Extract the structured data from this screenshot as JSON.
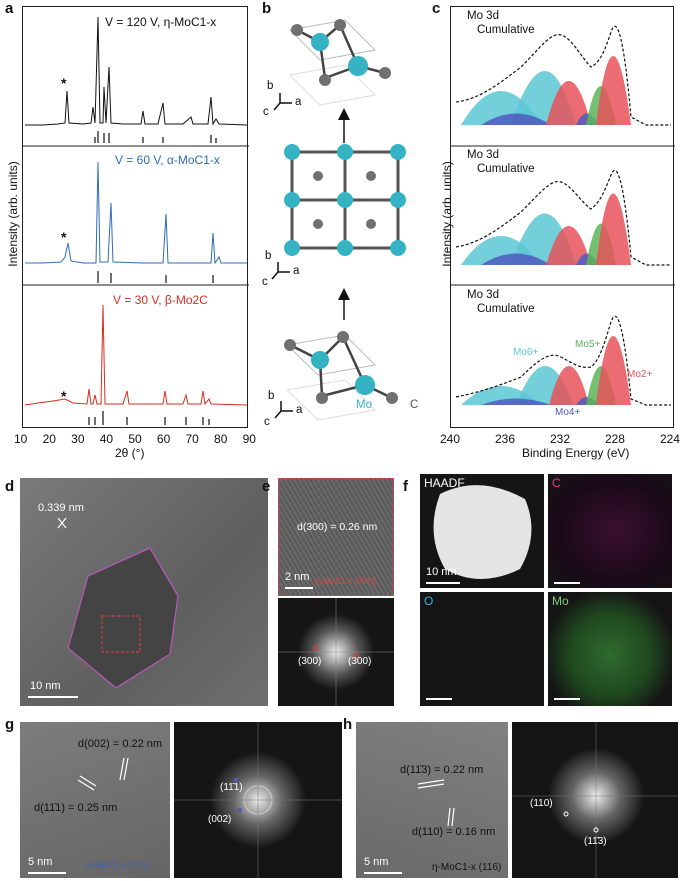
{
  "panels": {
    "a": {
      "label": "a",
      "ylabel": "Intensity (arb. units)",
      "xlabel": "2θ (°)",
      "xticks": [
        "10",
        "20",
        "30",
        "40",
        "50",
        "60",
        "70",
        "80",
        "90"
      ],
      "top_label": "V = 120 V, η-MoC1-x",
      "mid_label": "V = 60 V, α-MoC1-x",
      "bot_label": "V = 30 V, β-Mo2C",
      "star": "*",
      "colors": {
        "top": "#111111",
        "mid": "#2f6db5",
        "bot": "#d62d20"
      }
    },
    "b": {
      "label": "b",
      "axis_b": "b",
      "axis_a": "a",
      "axis_c": "c",
      "mo_label": "Mo",
      "c_label": "C",
      "mo_color": "#35b3c4",
      "c_color": "#707070"
    },
    "c": {
      "label": "c",
      "ylabel": "Intensity (arb. units)",
      "xlabel": "Binding Energy (eV)",
      "xticks": [
        "240",
        "236",
        "232",
        "228",
        "224"
      ],
      "legend_points": "Mo 3d",
      "legend_line": "Cumulative",
      "peak_labels": {
        "mo6": "Mo6+",
        "mo5": "Mo5+",
        "mo4": "Mo4+",
        "mo2": "Mo2+"
      },
      "colors": {
        "cyan": "#5bc8d3",
        "blue": "#4f5bbf",
        "red": "#e7535a",
        "green": "#5ab55a"
      }
    },
    "d": {
      "label": "d",
      "spacing": "0.339 nm",
      "scale": "10 nm"
    },
    "e": {
      "label": "e",
      "dspacing": "d(300) = 0.26 nm",
      "scale": "2 nm",
      "spot1": "(300)",
      "spot2": "(300)",
      "zone": "[η-MoC1-x (001)]"
    },
    "f": {
      "label": "f",
      "haadf": "HAADF",
      "c": "C",
      "o": "O",
      "mo": "Mo",
      "scale": "10 nm"
    },
    "g": {
      "label": "g",
      "d1": "d(002) = 0.22 nm",
      "d2": "d(11̄1) = 0.25 nm",
      "scale": "5 nm",
      "spot1": "(11̄1)",
      "spot2": "(002)",
      "zone": "η-MoC1-x (110)"
    },
    "h": {
      "label": "h",
      "d1": "d(11̄3) = 0.22 nm",
      "d2": "d(110) = 0.16 nm",
      "scale": "5 nm",
      "spot1": "(110)",
      "spot2": "(11̄3)",
      "zone": "η-MoC1-x (116)"
    }
  }
}
